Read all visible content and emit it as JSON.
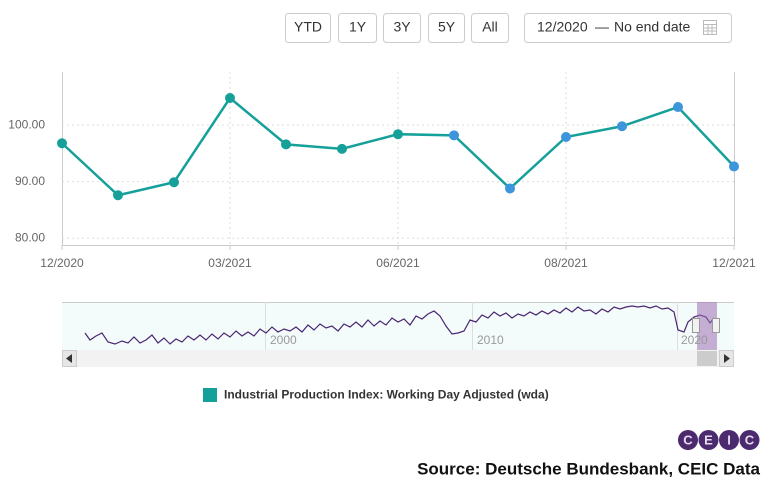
{
  "toolbar": {
    "buttons": [
      "YTD",
      "1Y",
      "3Y",
      "5Y",
      "All"
    ],
    "range_start": "12/2020",
    "range_separator": "—",
    "range_end": "No end date"
  },
  "chart_data": {
    "type": "line",
    "categories": [
      "12/2020",
      null,
      null,
      "03/2021",
      null,
      null,
      "06/2021",
      null,
      null,
      "08/2021",
      null,
      null,
      "12/2021"
    ],
    "series": [
      {
        "name": "Industrial Production Index: Working Day Adjusted (wda)",
        "color": "#16a09a",
        "values": [
          96.8,
          87.6,
          89.9,
          104.8,
          96.6,
          95.8,
          98.4,
          98.2,
          88.8,
          97.9,
          99.8,
          103.2,
          92.7
        ],
        "point_colors": [
          "#16a09a",
          "#16a09a",
          "#16a09a",
          "#16a09a",
          "#16a09a",
          "#16a09a",
          "#16a09a",
          "#3d96dc",
          "#3d96dc",
          "#3d96dc",
          "#3d96dc",
          "#3d96dc",
          "#3d96dc"
        ]
      }
    ],
    "ylim": [
      78.8,
      109.4
    ],
    "yticks": [
      {
        "value": 80,
        "label": "80.00"
      },
      {
        "value": 90,
        "label": "90.00"
      },
      {
        "value": 100,
        "label": "100.00"
      }
    ],
    "grid": true
  },
  "navigator": {
    "labels": [
      "2000",
      "2010",
      "2020"
    ]
  },
  "logo": [
    "C",
    "E",
    "I",
    "C"
  ],
  "source": "Source: Deutsche Bundesbank, CEIC Data"
}
